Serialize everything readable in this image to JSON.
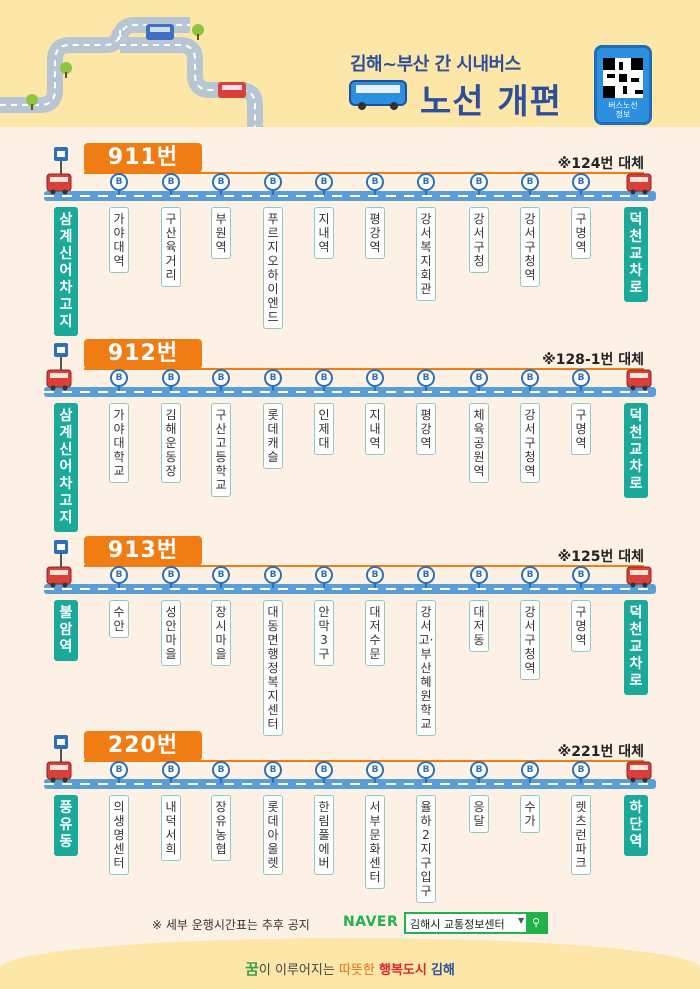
{
  "header": {
    "subtitle": "김해~부산 간 시내버스",
    "title": "노선 개편",
    "phone_label": "버스노선\n정보"
  },
  "routes": [
    {
      "number": "911번",
      "replaces": "※124번 대체",
      "start": "삼계신어차고지",
      "end": "덕천교차로",
      "stops": [
        "가야대역",
        "구산육거리",
        "부원역",
        "푸르지오하이엔드",
        "지내역",
        "평강역",
        "강서복지회관",
        "강서구청",
        "강서구청역",
        "구명역"
      ]
    },
    {
      "number": "912번",
      "replaces": "※128-1번 대체",
      "start": "삼계신어차고지",
      "end": "덕천교차로",
      "stops": [
        "가야대학교",
        "김해운동장",
        "구산고등학교",
        "롯데캐슬",
        "인제대",
        "지내역",
        "평강역",
        "체육공원역",
        "강서구청역",
        "구명역"
      ]
    },
    {
      "number": "913번",
      "replaces": "※125번 대체",
      "start": "불암역",
      "end": "덕천교차로",
      "stops": [
        "수안",
        "성안마을",
        "장시마을",
        "대동면행정복지센터",
        "안막3구",
        "대저수문",
        "강서고·부산혜원학교",
        "대저동",
        "강서구청역",
        "구명역"
      ]
    },
    {
      "number": "220번",
      "replaces": "※221번 대체",
      "start": "풍유동",
      "end": "하단역",
      "stops": [
        "의생명센터",
        "내덕서희",
        "장유농협",
        "롯데아울렛",
        "한림풀에버",
        "서부문화센터",
        "율하2지구입구",
        "응달",
        "수가",
        "렛츠런파크"
      ]
    }
  ],
  "footer": {
    "note": "※ 세부 운행시간표는 추후 공지",
    "naver": "NAVER",
    "search_text": "김해시 교통정보센터",
    "slogan_dream": "꿈",
    "slogan_mid": "이 이루어지는 ",
    "slogan_warm": "따뜻한",
    "slogan_happy": "행복도시",
    "slogan_city": "김해"
  },
  "colors": {
    "route_orange": "#f07d14",
    "terminal_teal": "#1ba99a",
    "title_blue": "#2d4f9c",
    "header_yellow": "#fde7a8"
  }
}
